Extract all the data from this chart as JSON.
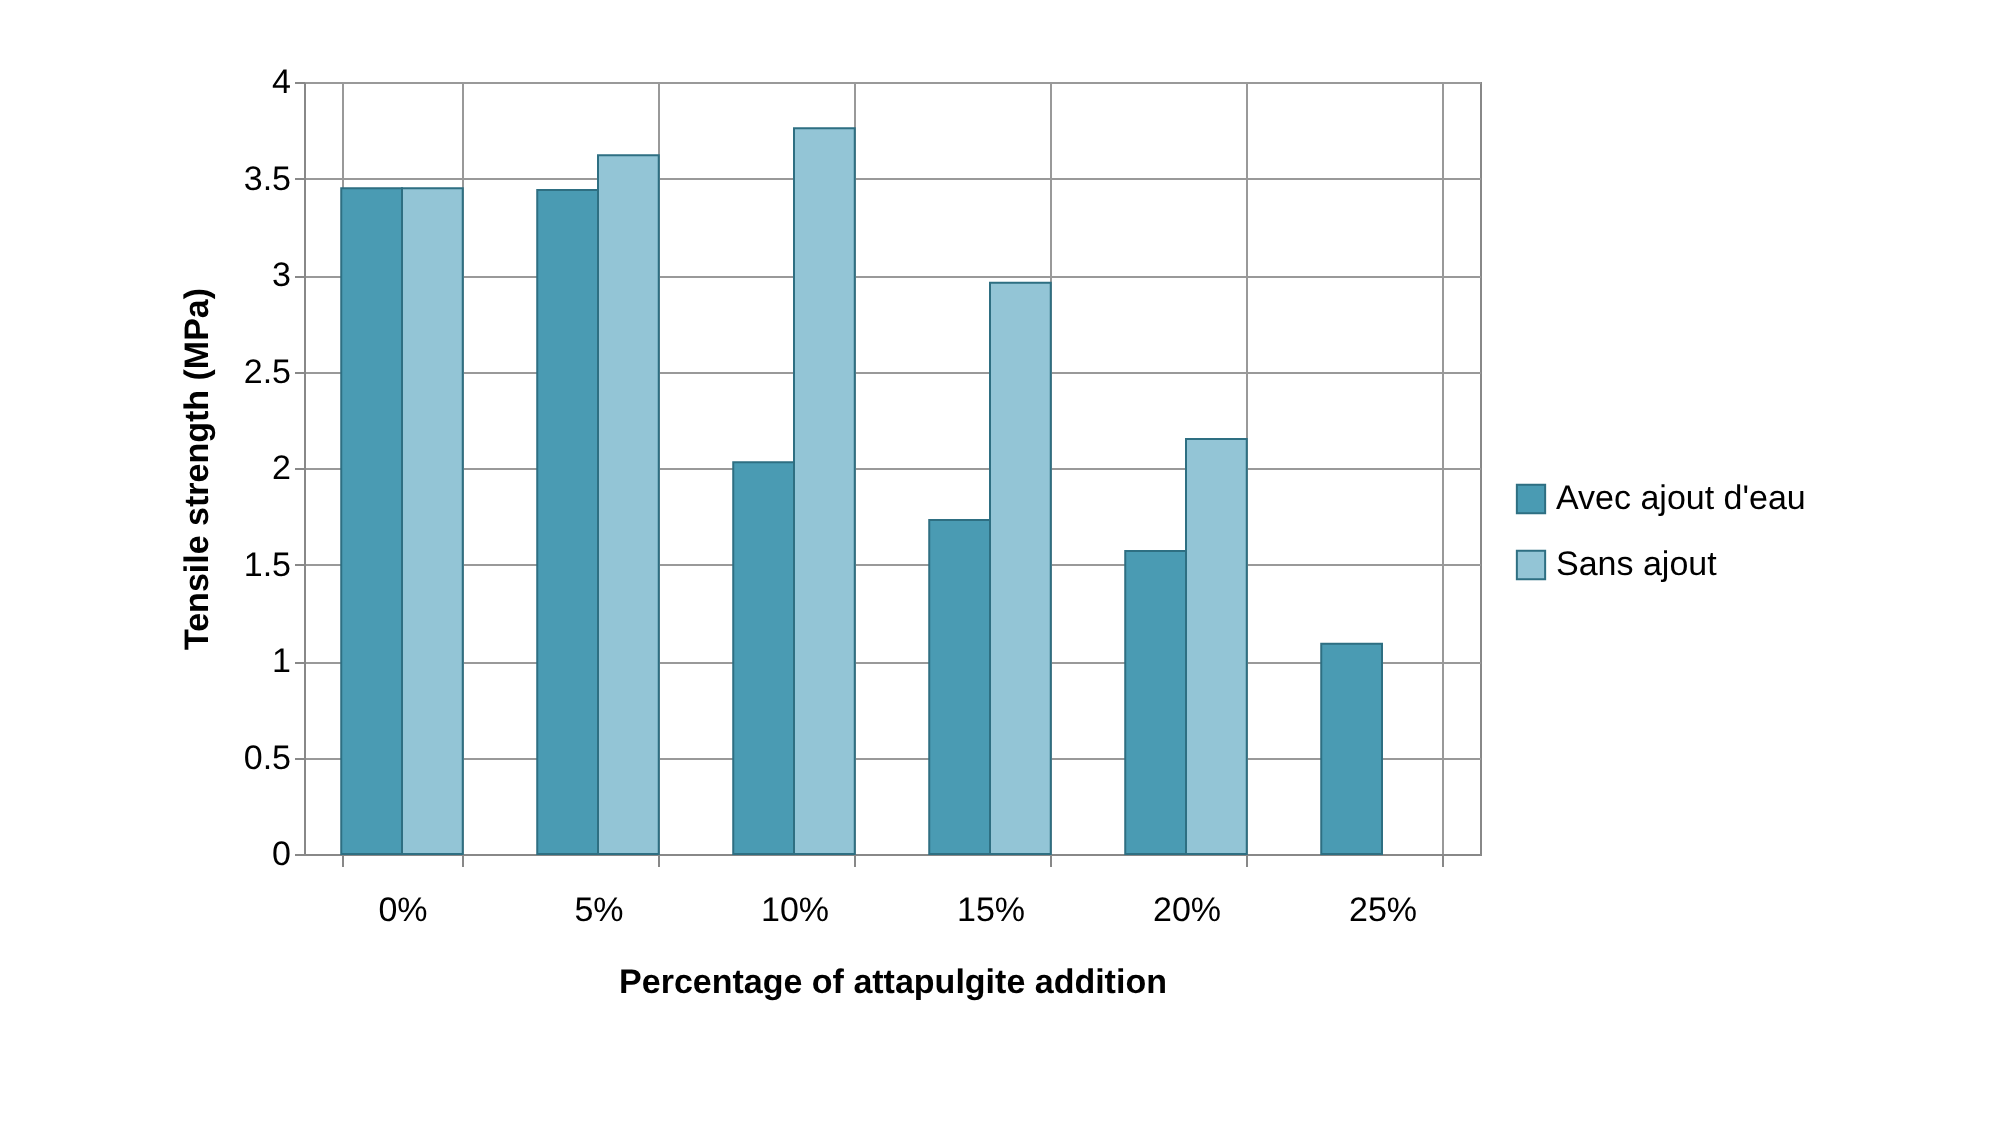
{
  "chart_data": {
    "type": "bar",
    "xlabel": "Percentage of attapulgite addition",
    "ylabel": "Tensile strength (MPa)",
    "categories": [
      "0%",
      "5%",
      "10%",
      "15%",
      "20%",
      "25%"
    ],
    "series": [
      {
        "name": "Avec ajout d'eau",
        "color": "#4a9bb3",
        "values": [
          3.45,
          3.44,
          2.03,
          1.73,
          1.57,
          1.09
        ]
      },
      {
        "name": "Sans ajout",
        "color": "#93c5d6",
        "values": [
          3.45,
          3.62,
          3.76,
          2.96,
          2.15,
          null
        ]
      }
    ],
    "ylim": [
      0,
      4
    ],
    "yticks": [
      0,
      0.5,
      1,
      1.5,
      2,
      2.5,
      3,
      3.5,
      4
    ],
    "grid": true,
    "legend": "right"
  }
}
